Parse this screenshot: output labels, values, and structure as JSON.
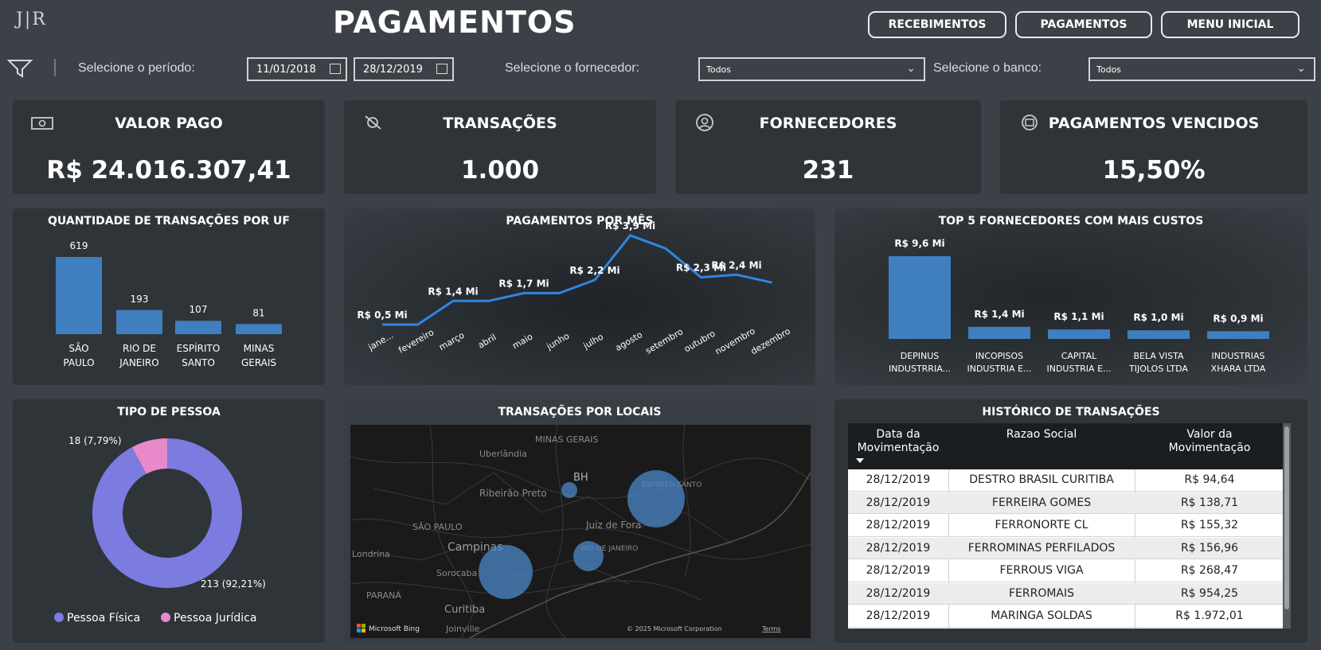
{
  "header": {
    "logo_text": "J|R",
    "title": "PAGAMENTOS",
    "nav": [
      "RECEBIMENTOS",
      "PAGAMENTOS",
      "MENU INICIAL"
    ]
  },
  "filters": {
    "period_label": "Selecione o período:",
    "date_start": "11/01/2018",
    "date_end": "28/12/2019",
    "supplier_label": "Selecione o fornecedor:",
    "supplier_value": "Todos",
    "bank_label": "Selecione o banco:",
    "bank_value": "Todos"
  },
  "kpis": [
    {
      "title": "VALOR PAGO",
      "value": "R$ 24.016.307,41",
      "icon": "money-icon"
    },
    {
      "title": "TRANSAÇÕES",
      "value": "1.000",
      "icon": "transactions-icon"
    },
    {
      "title": "FORNECEDORES",
      "value": "231",
      "icon": "user-icon"
    },
    {
      "title": "PAGAMENTOS VENCIDOS",
      "value": "15,50%",
      "icon": "calendar-icon"
    }
  ],
  "uf_chart": {
    "title": "QUANTIDADE DE TRANSAÇÕES POR UF",
    "chart_data": {
      "type": "bar",
      "categories": [
        [
          "SÃO",
          "PAULO"
        ],
        [
          "RIO DE",
          "JANEIRO"
        ],
        [
          "ESPÍRITO",
          "SANTO"
        ],
        [
          "MINAS",
          "GERAIS"
        ]
      ],
      "values": [
        619,
        193,
        107,
        81
      ],
      "color": "#3f7fbf"
    }
  },
  "month_chart": {
    "title": "PAGAMENTOS POR MÊS",
    "chart_data": {
      "type": "line",
      "categories": [
        "jane...",
        "fevereiro",
        "março",
        "abril",
        "maio",
        "junho",
        "julho",
        "agosto",
        "setembro",
        "outubro",
        "novembro",
        "dezembro"
      ],
      "values": [
        0.5,
        0.5,
        1.4,
        1.4,
        1.7,
        1.7,
        2.2,
        3.9,
        3.4,
        2.3,
        2.4,
        2.1
      ],
      "data_labels": [
        "R$ 0,5 Mi",
        "",
        "R$ 1,4 Mi",
        "",
        "R$ 1,7 Mi",
        "",
        "R$ 2,2 Mi",
        "R$ 3,9 Mi",
        "",
        "R$ 2,3 Mi",
        "R$ 2,4 Mi",
        ""
      ],
      "color": "#2f86e0"
    }
  },
  "top5_chart": {
    "title": "TOP 5 FORNECEDORES COM MAIS CUSTOS",
    "chart_data": {
      "type": "bar",
      "categories": [
        [
          "DEPINUS",
          "INDUSTRRIA..."
        ],
        [
          "INCOPISOS",
          "INDUSTRIA E..."
        ],
        [
          "CAPITAL",
          "INDUSTRIA E..."
        ],
        [
          "BELA VISTA",
          "TIJOLOS LTDA"
        ],
        [
          "INDUSTRIAS",
          "XHARA LTDA"
        ]
      ],
      "values": [
        9.6,
        1.4,
        1.1,
        1.0,
        0.9
      ],
      "data_labels": [
        "R$ 9,6 Mi",
        "R$ 1,4 Mi",
        "R$ 1,1 Mi",
        "R$ 1,0 Mi",
        "R$ 0,9 Mi"
      ],
      "color": "#3f7fbf"
    }
  },
  "pessoa_chart": {
    "title": "TIPO DE PESSOA",
    "chart_data": {
      "type": "pie",
      "labels": [
        "Pessoa Física",
        "Pessoa Jurídica"
      ],
      "values": [
        213,
        18
      ],
      "data_labels": [
        "213 (92,21%)",
        "18 (7,79%)"
      ],
      "colors": [
        "#7b7be0",
        "#e889c9"
      ]
    }
  },
  "map": {
    "title": "TRANSAÇÕES POR LOCAIS",
    "places": [
      "MINAS GERAIS",
      "Uberlândia",
      "BH",
      "ESPÍRITO SANTO",
      "Ribeirão Preto",
      "Juiz de Fora",
      "SÃO PAULO",
      "Campinas",
      "RIO DE JANEIRO",
      "Sorocaba",
      "Londrina",
      "PARANÁ",
      "Curitiba",
      "Joinville"
    ],
    "attribution_logo": "Microsoft Bing",
    "copyright": "© 2025 Microsoft Corporation",
    "terms": "Terms"
  },
  "history": {
    "title": "HISTÓRICO DE TRANSAÇÕES",
    "columns": [
      [
        "Data da",
        "Movimentação"
      ],
      [
        "Razao Social"
      ],
      [
        "Valor da",
        "Movimentação"
      ]
    ],
    "rows": [
      [
        "28/12/2019",
        "DESTRO BRASIL CURITIBA",
        "R$ 94,64"
      ],
      [
        "28/12/2019",
        "FERREIRA GOMES",
        "R$ 138,71"
      ],
      [
        "28/12/2019",
        "FERRONORTE CL",
        "R$ 155,32"
      ],
      [
        "28/12/2019",
        "FERROMINAS PERFILADOS",
        "R$ 156,96"
      ],
      [
        "28/12/2019",
        "FERROUS VIGA",
        "R$ 268,47"
      ],
      [
        "28/12/2019",
        "FERROMAIS",
        "R$ 954,25"
      ],
      [
        "28/12/2019",
        "MARINGA SOLDAS",
        "R$ 1.972,01"
      ]
    ]
  }
}
